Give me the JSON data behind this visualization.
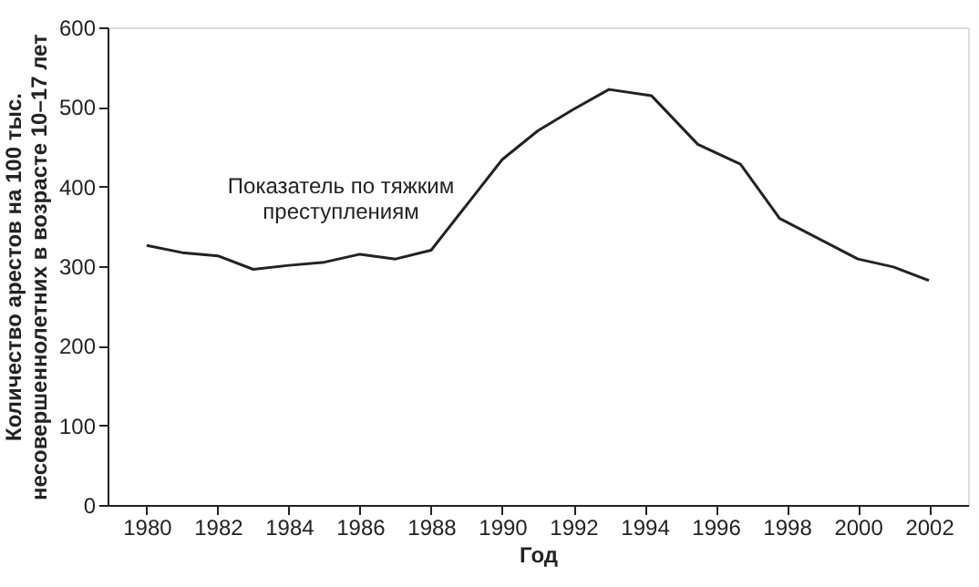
{
  "chart_data": {
    "type": "line",
    "xlabel": "Год",
    "ylabel": "Количество арестов на 100 тыс.\nнесовершеннолетних в возрасте 10–17 лет",
    "x": [
      1980,
      1981,
      1982,
      1983,
      1984,
      1985,
      1986,
      1987,
      1988,
      1990,
      1991,
      1992,
      1993,
      1994.2,
      1995.5,
      1996.7,
      1997.8,
      2000,
      2001,
      2002
    ],
    "series": [
      {
        "name": "Показатель по тяжким преступлениям",
        "color": "#222222",
        "values": [
          326,
          317,
          313,
          296,
          301,
          305,
          315,
          309,
          320,
          434,
          470,
          497,
          522,
          514,
          453,
          428,
          360,
          309,
          299,
          282
        ]
      }
    ],
    "xlim": [
      1978.9,
      2003.1
    ],
    "xticks": [
      1980,
      1982,
      1984,
      1986,
      1988,
      1990,
      1992,
      1994,
      1996,
      1998,
      2000,
      2002
    ],
    "ylim": [
      0,
      600
    ],
    "yticks": [
      0,
      100,
      200,
      300,
      400,
      500,
      600
    ],
    "grid": false,
    "marker": "none",
    "line_style": "solid"
  }
}
